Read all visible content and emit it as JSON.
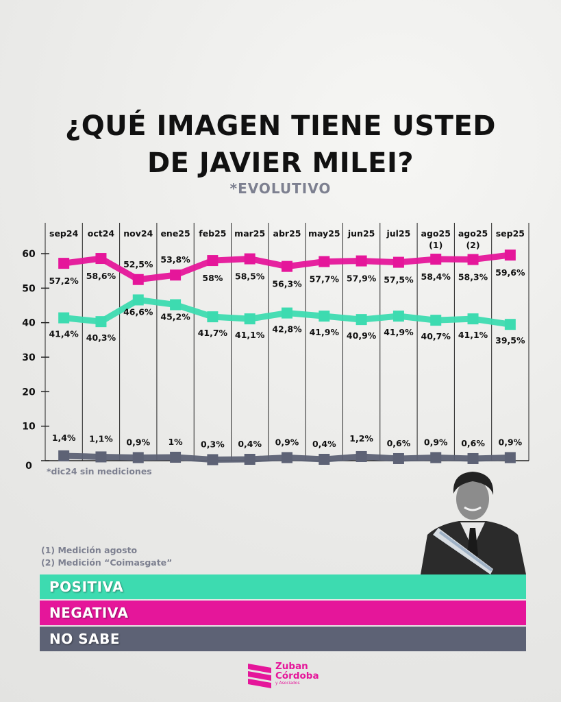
{
  "title_line1": "¿QUÉ IMAGEN TIENE USTED",
  "title_line2": "DE JAVIER MILEI?",
  "subtitle": "*EVOLUTIVO",
  "chart_data": {
    "type": "line",
    "categories": [
      "sep24",
      "oct24",
      "nov24",
      "ene25",
      "feb25",
      "mar25",
      "abr25",
      "may25",
      "jun25",
      "jul25",
      "ago25 (1)",
      "ago25 (2)",
      "sep25"
    ],
    "category_labels": [
      [
        "sep24"
      ],
      [
        "oct24"
      ],
      [
        "nov24"
      ],
      [
        "ene25"
      ],
      [
        "feb25"
      ],
      [
        "mar25"
      ],
      [
        "abr25"
      ],
      [
        "may25"
      ],
      [
        "jun25"
      ],
      [
        "jul25"
      ],
      [
        "ago25",
        "(1)"
      ],
      [
        "ago25",
        "(2)"
      ],
      [
        "sep25"
      ]
    ],
    "ylim": [
      0,
      60
    ],
    "yticks": [
      "0",
      "10",
      "20",
      "30",
      "40",
      "50",
      "60"
    ],
    "series": [
      {
        "name": "NEGATIVA",
        "color": "#e5169a",
        "values": [
          57.2,
          58.6,
          52.5,
          53.8,
          58,
          58.5,
          56.3,
          57.7,
          57.9,
          57.5,
          58.4,
          58.3,
          59.6
        ],
        "labels": [
          "57,2%",
          "58,6%",
          "52,5%",
          "53,8%",
          "58%",
          "58,5%",
          "56,3%",
          "57,7%",
          "57,9%",
          "57,5%",
          "58,4%",
          "58,3%",
          "59,6%"
        ]
      },
      {
        "name": "POSITIVA",
        "color": "#3ddbb0",
        "values": [
          41.4,
          40.3,
          46.6,
          45.2,
          41.7,
          41.1,
          42.8,
          41.9,
          40.9,
          41.9,
          40.7,
          41.1,
          39.5
        ],
        "labels": [
          "41,4%",
          "40,3%",
          "46,6%",
          "45,2%",
          "41,7%",
          "41,1%",
          "42,8%",
          "41,9%",
          "40,9%",
          "41,9%",
          "40,7%",
          "41,1%",
          "39,5%"
        ]
      },
      {
        "name": "NO SABE",
        "color": "#5d6275",
        "values": [
          1.4,
          1.1,
          0.9,
          1,
          0.3,
          0.4,
          0.9,
          0.4,
          1.2,
          0.6,
          0.9,
          0.6,
          0.9
        ],
        "labels": [
          "1,4%",
          "1,1%",
          "0,9%",
          "1%",
          "0,3%",
          "0,4%",
          "0,9%",
          "0,4%",
          "1,2%",
          "0,6%",
          "0,9%",
          "0,6%",
          "0,9%"
        ]
      }
    ],
    "grid": "vertical",
    "legend": "bottom"
  },
  "footnote": "*dic24 sin mediciones",
  "notes": [
    "(1) Medición agosto",
    "(2) Medición “Coimasgate”"
  ],
  "legend": [
    {
      "label": "POSITIVA",
      "color": "#3ddbb0"
    },
    {
      "label": "NEGATIVA",
      "color": "#e5169a"
    },
    {
      "label": "NO SABE",
      "color": "#5d6275"
    }
  ],
  "logo": {
    "line1": "Zuban",
    "line2": "Córdoba",
    "line3": "y Asociados"
  }
}
